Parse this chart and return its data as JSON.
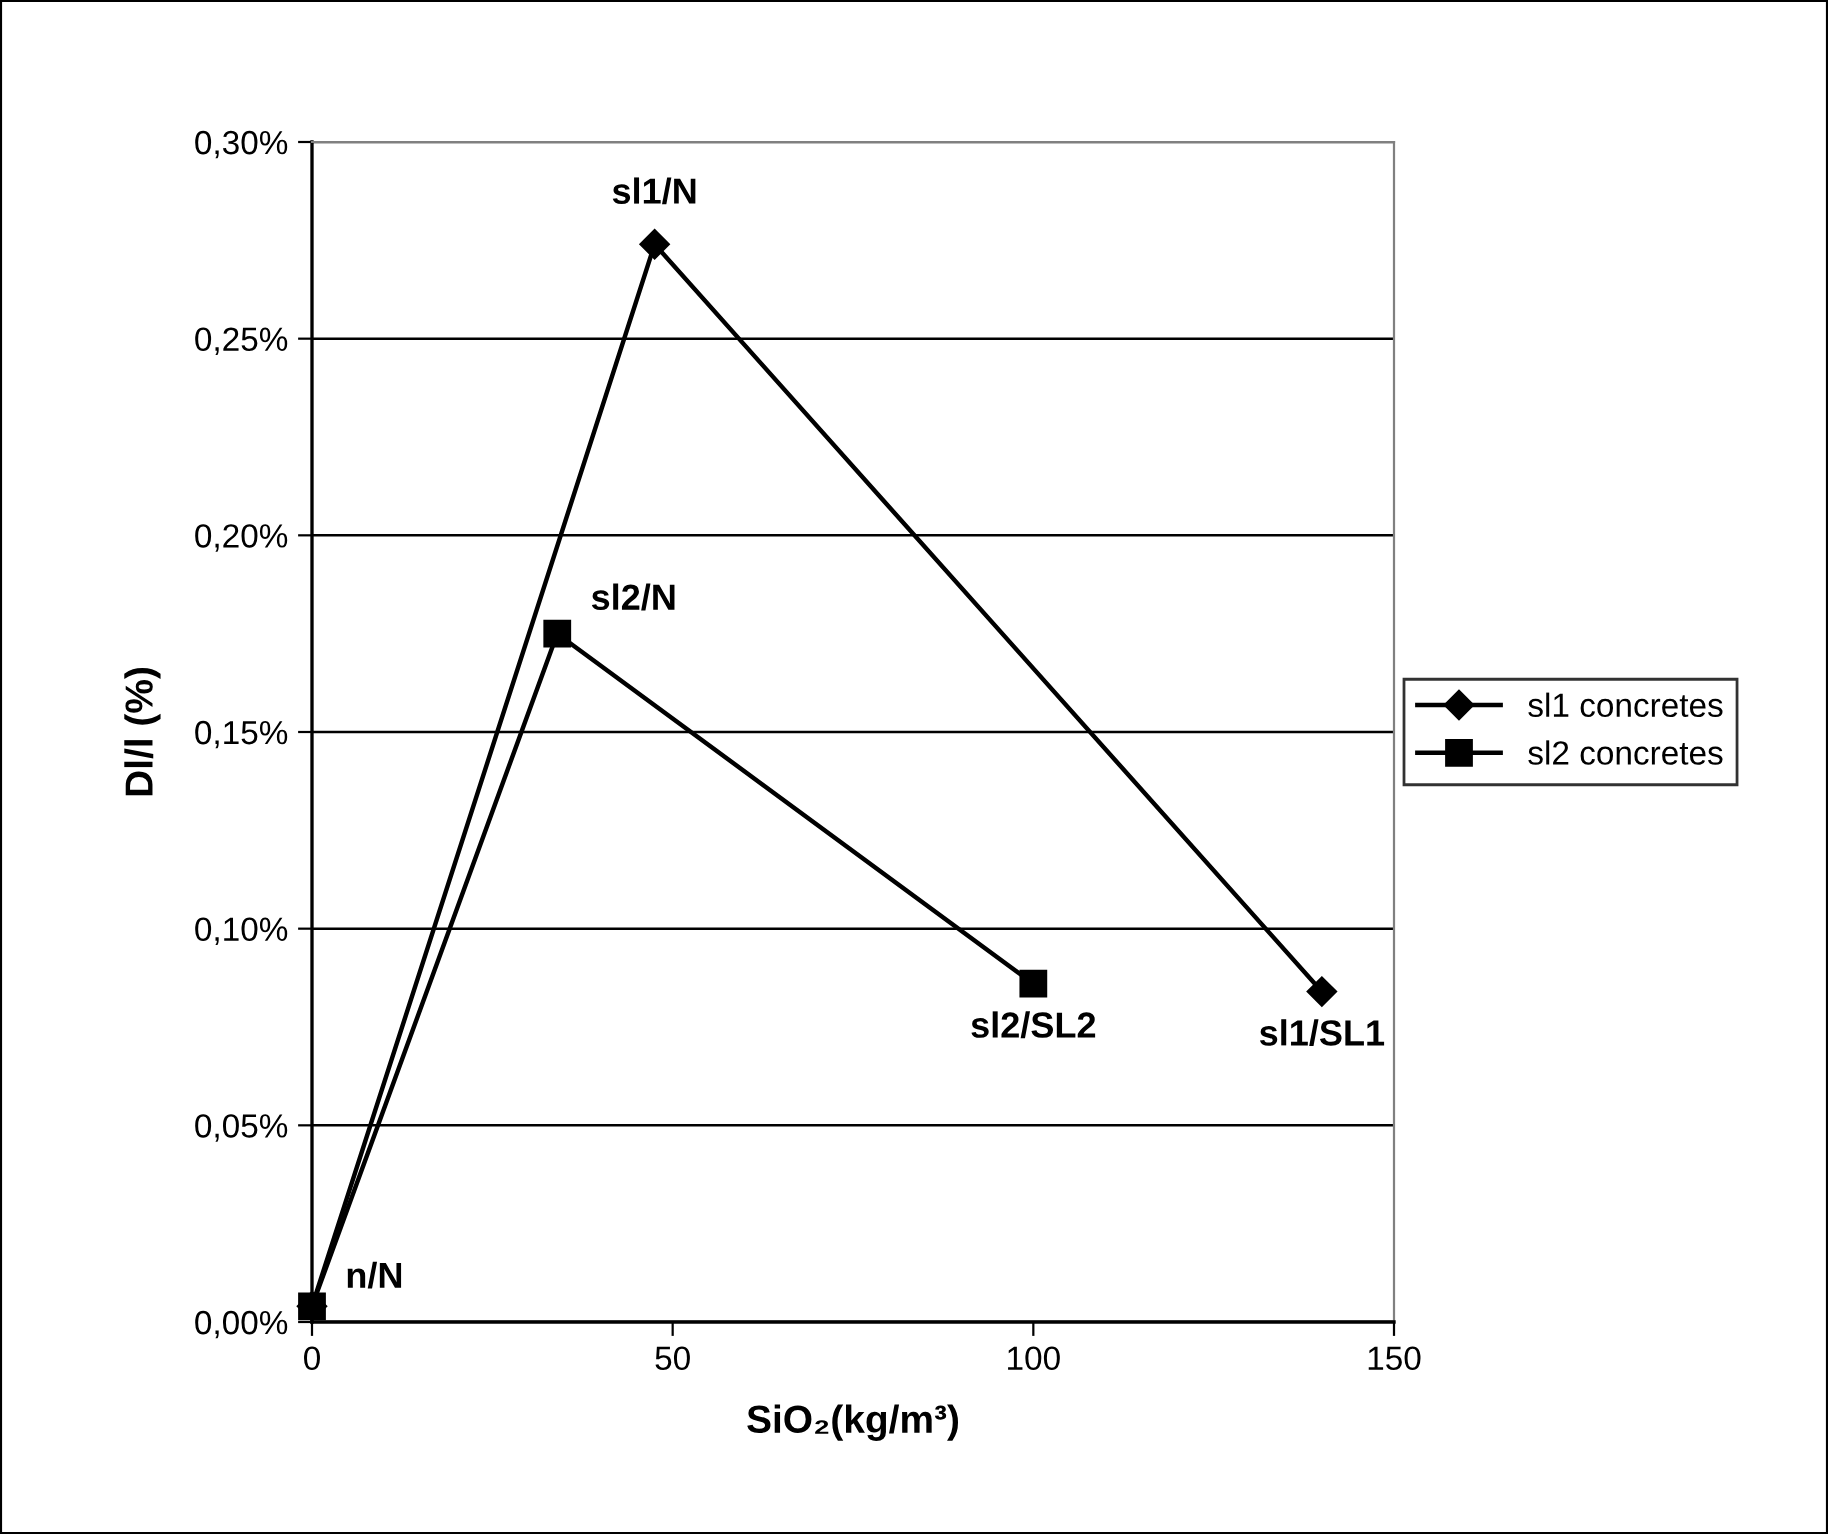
{
  "chart_data": {
    "type": "line",
    "xlabel": "SiO₂(kg/m³)",
    "ylabel": "Dl/l (%)",
    "xlim": [
      0,
      150
    ],
    "xticks": [
      0,
      50,
      100,
      150
    ],
    "ylim": [
      0,
      0.3
    ],
    "yticks": [
      {
        "value": 0,
        "label": "0,00%"
      },
      {
        "value": 0.05,
        "label": "0,05%"
      },
      {
        "value": 0.1,
        "label": "0,10%"
      },
      {
        "value": 0.15,
        "label": "0,15%"
      },
      {
        "value": 0.2,
        "label": "0,20%"
      },
      {
        "value": 0.25,
        "label": "0,25%"
      },
      {
        "value": 0.3,
        "label": "0,30%"
      }
    ],
    "grid": "y",
    "legend": "right",
    "line_style": "solid",
    "series": [
      {
        "name": "sl1 concretes",
        "color": "#000000",
        "marker": "diamond",
        "x": [
          0,
          47.5,
          140
        ],
        "values": [
          0.004,
          0.274,
          0.084
        ]
      },
      {
        "name": "sl2 concretes",
        "color": "#000000",
        "marker": "square",
        "x": [
          0,
          34,
          100
        ],
        "values": [
          0.004,
          0.175,
          0.086
        ]
      }
    ],
    "annotations": [
      {
        "text": "sl1/N",
        "x": 47.5,
        "y": 0.274
      },
      {
        "text": "sl2/N",
        "x": 34,
        "y": 0.175
      },
      {
        "text": "sl2/SL2",
        "x": 100,
        "y": 0.086
      },
      {
        "text": "sl1/SL1",
        "x": 140,
        "y": 0.084
      },
      {
        "text": "n/N",
        "x": 0,
        "y": 0.004
      }
    ]
  }
}
